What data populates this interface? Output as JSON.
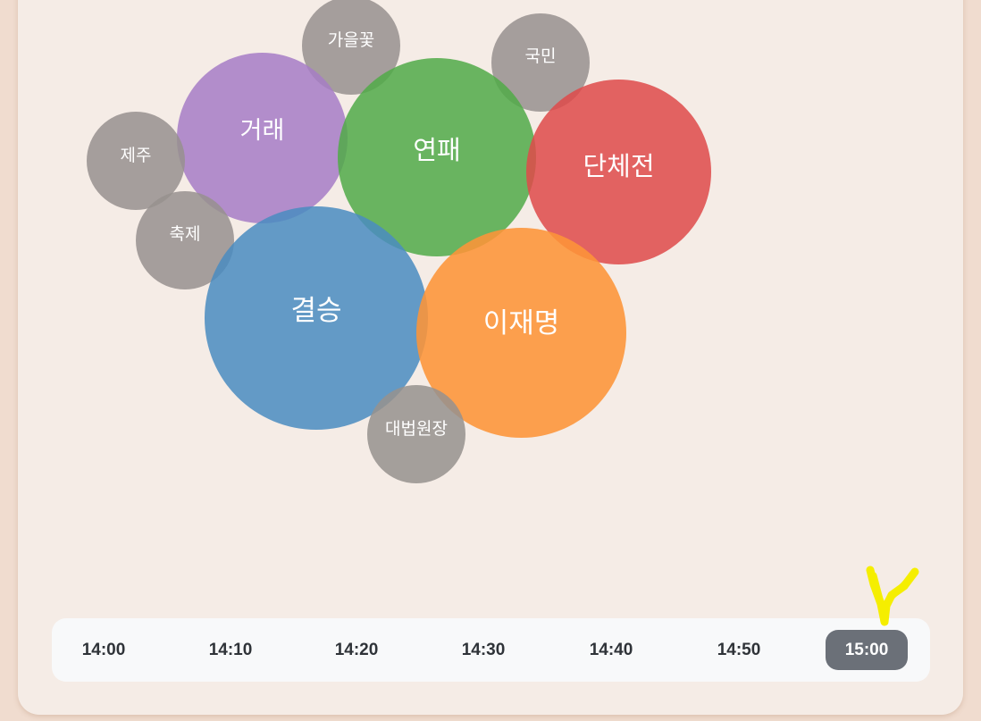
{
  "bubbles": [
    {
      "label": "가을꽃",
      "color": "#a09b98",
      "size": "small"
    },
    {
      "label": "국민",
      "color": "#a09b98",
      "size": "small"
    },
    {
      "label": "거래",
      "color": "#a67fc6",
      "size": "medium"
    },
    {
      "label": "제주",
      "color": "#a09b98",
      "size": "small"
    },
    {
      "label": "연패",
      "color": "#57ae4f",
      "size": "large"
    },
    {
      "label": "단체전",
      "color": "#df5050",
      "size": "large"
    },
    {
      "label": "축제",
      "color": "#a09b98",
      "size": "small"
    },
    {
      "label": "결승",
      "color": "#4f8fc0",
      "size": "large"
    },
    {
      "label": "이재명",
      "color": "#fd973e",
      "size": "large"
    },
    {
      "label": "대법원장",
      "color": "#a09b98",
      "size": "small"
    }
  ],
  "timeline": {
    "times": [
      "14:00",
      "14:10",
      "14:20",
      "14:30",
      "14:40",
      "14:50",
      "15:00"
    ],
    "selected": "15:00",
    "selected_color": "#6b7078",
    "marker_color": "#f5ee00"
  }
}
